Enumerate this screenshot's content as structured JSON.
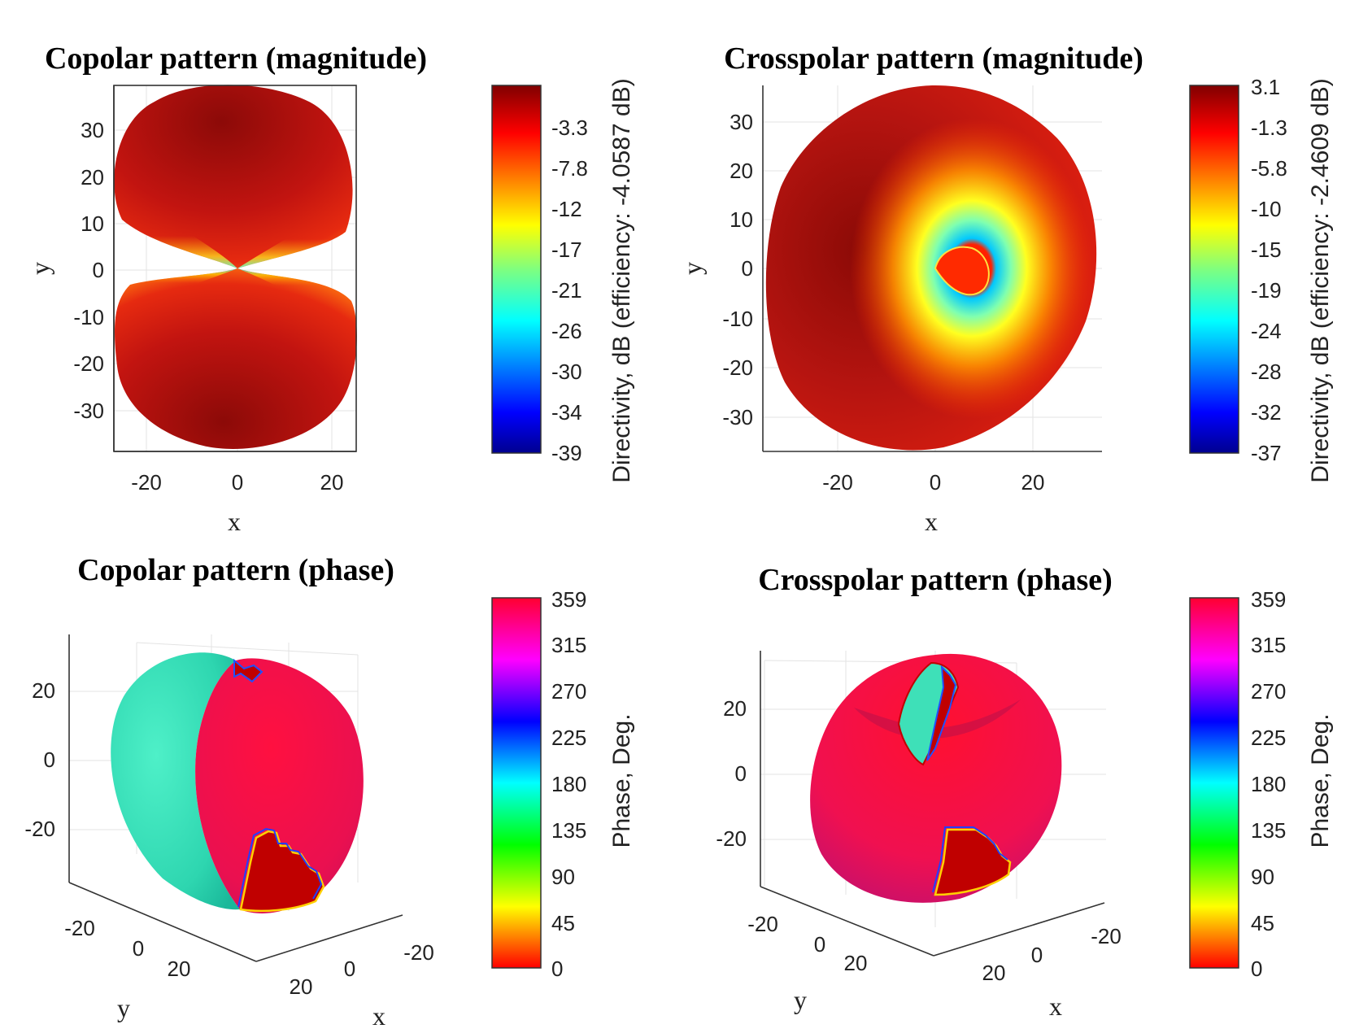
{
  "chart_data": [
    {
      "id": "copolar-magnitude",
      "type": "heatmap",
      "title": "Copolar pattern (magnitude)",
      "xlabel": "x",
      "ylabel": "y",
      "xticks": [
        -20,
        0,
        20
      ],
      "yticks": [
        30,
        20,
        10,
        0,
        -10,
        -20,
        -30
      ],
      "xlim": [
        -26,
        25
      ],
      "ylim": [
        -39,
        39
      ],
      "colorbar": {
        "label": "Directivity, dB (efficiency: -4.0587 dB)",
        "ticks": [
          "-3.3",
          "-7.8",
          "-12",
          "-17",
          "-21",
          "-26",
          "-30",
          "-34",
          "-39"
        ],
        "range": [
          -39,
          1
        ],
        "colormap": "jet"
      }
    },
    {
      "id": "crosspolar-magnitude",
      "type": "heatmap",
      "title": "Crosspolar pattern (magnitude)",
      "xlabel": "x",
      "ylabel": "y",
      "xticks": [
        -20,
        0,
        20
      ],
      "yticks": [
        30,
        20,
        10,
        0,
        -10,
        -20,
        -30
      ],
      "xlim": [
        -36,
        34
      ],
      "ylim": [
        -38,
        38
      ],
      "colorbar": {
        "label": "Directivity, dB (efficiency: -2.4609 dB)",
        "ticks": [
          "3.1",
          "-1.3",
          "-5.8",
          "-10",
          "-15",
          "-19",
          "-24",
          "-28",
          "-32",
          "-37"
        ],
        "range": [
          -37,
          3.1
        ],
        "colormap": "jet"
      }
    },
    {
      "id": "copolar-phase",
      "type": "heatmap",
      "title": "Copolar pattern (phase)",
      "xlabel": "x",
      "ylabel": "y",
      "zticks": [
        20,
        0,
        -20
      ],
      "yticks": [
        -20,
        0,
        20
      ],
      "xticks": [
        -20,
        0,
        20
      ],
      "colorbar": {
        "label": "Phase, Deg.",
        "ticks": [
          "359",
          "315",
          "270",
          "225",
          "180",
          "135",
          "90",
          "45",
          "0"
        ],
        "range": [
          0,
          359
        ],
        "colormap": "hsv"
      }
    },
    {
      "id": "crosspolar-phase",
      "type": "heatmap",
      "title": "Crosspolar pattern (phase)",
      "xlabel": "x",
      "ylabel": "y",
      "zticks": [
        20,
        0,
        -20
      ],
      "yticks": [
        -20,
        0,
        20
      ],
      "xticks": [
        -20,
        0,
        20
      ],
      "colorbar": {
        "label": "Phase, Deg.",
        "ticks": [
          "359",
          "315",
          "270",
          "225",
          "180",
          "135",
          "90",
          "45",
          "0"
        ],
        "range": [
          0,
          359
        ],
        "colormap": "hsv"
      }
    }
  ]
}
